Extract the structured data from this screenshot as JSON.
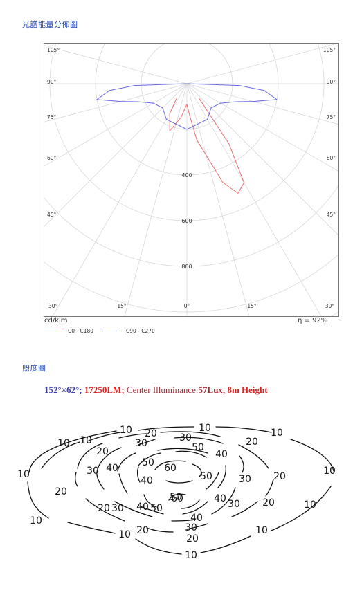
{
  "sections": {
    "polar_title": "光譜能量分佈圖",
    "iso_title": "照度圖"
  },
  "polar": {
    "angle_labels_top": [
      "105°",
      "105°"
    ],
    "angle_labels_90": [
      "90°",
      "90°"
    ],
    "angle_labels_75": [
      "75°",
      "75°"
    ],
    "angle_labels_60": [
      "60°",
      "60°"
    ],
    "angle_labels_45": [
      "45°",
      "45°"
    ],
    "bottom_labels": [
      "30°",
      "15°",
      "0°",
      "15°",
      "30°"
    ],
    "radial_labels": [
      "400",
      "600",
      "800"
    ],
    "unit": "cd/klm",
    "efficiency": "η = 92%",
    "legend": [
      {
        "label": "C0 - C180",
        "color": "#e8706e"
      },
      {
        "label": "C90 - C270",
        "color": "#6868e0"
      }
    ]
  },
  "spec": {
    "beam": "152°×62°;",
    "lumen": "17250LM;",
    "center_label": "Center Illuminance:",
    "center_value": "57Lux,",
    "height": "8m Height",
    "colors": {
      "blue": "#3b3bb5",
      "red": "#e02424",
      "maroon": "#a0303a"
    }
  },
  "iso_labels": [
    "10",
    "10",
    "10",
    "10",
    "10",
    "10",
    "10",
    "10",
    "10",
    "10",
    "10",
    "10",
    "20",
    "20",
    "20",
    "20",
    "20",
    "20",
    "20",
    "20",
    "20",
    "30",
    "30",
    "30",
    "30",
    "30",
    "30",
    "30",
    "40",
    "40",
    "40",
    "40",
    "40",
    "40",
    "50",
    "50",
    "50",
    "50",
    "50",
    "60",
    "60"
  ],
  "chart_data": [
    {
      "type": "line",
      "polar": true,
      "title": "",
      "unit": "cd/klm",
      "radial_ticks": [
        400,
        600,
        800
      ],
      "angle_ticks_deg": [
        0,
        15,
        30,
        45,
        60,
        75,
        90,
        105
      ],
      "series": [
        {
          "name": "C0 - C180",
          "theta_deg": [
            -35,
            -30,
            -20,
            -10,
            0,
            5,
            10,
            20,
            25,
            30,
            35,
            40
          ],
          "r": [
            80,
            150,
            220,
            150,
            90,
            140,
            250,
            460,
            530,
            500,
            320,
            80
          ]
        },
        {
          "name": "C90 - C270",
          "theta_deg": [
            -90,
            -88,
            -85,
            -80,
            -75,
            -70,
            -60,
            -45,
            -30,
            0,
            30,
            45,
            60,
            70,
            75,
            80,
            85,
            88,
            90
          ],
          "r": [
            0,
            230,
            340,
            400,
            300,
            230,
            170,
            150,
            180,
            200,
            180,
            150,
            170,
            230,
            300,
            400,
            340,
            230,
            0
          ]
        }
      ],
      "efficiency": "η = 92%"
    },
    {
      "type": "contour",
      "title": "152°×62°; 17250LM; Center Illuminance:57Lux, 8m Height",
      "levels": [
        10,
        20,
        30,
        40,
        50,
        60
      ],
      "unit": "Lux",
      "center_value": 57
    }
  ]
}
